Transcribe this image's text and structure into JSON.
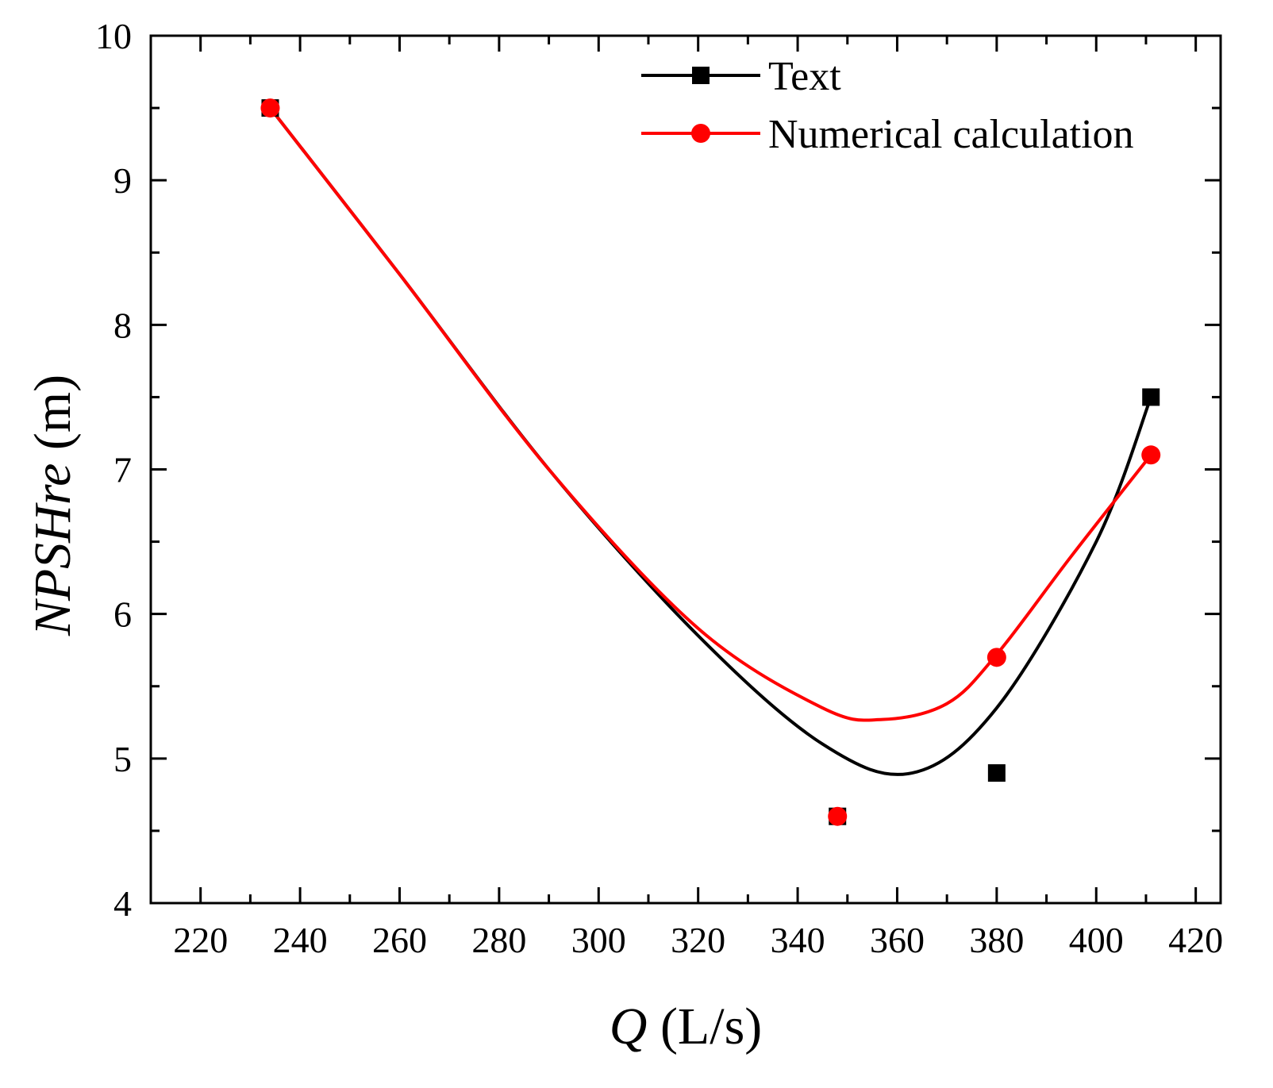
{
  "chart_data": {
    "type": "line",
    "xlabel": {
      "symbol": "Q",
      "unit": " (L/s)"
    },
    "ylabel": {
      "symbol": "NPSHre",
      "unit": " (m)"
    },
    "xlim": [
      210,
      425
    ],
    "ylim": [
      4,
      10
    ],
    "x_ticks": [
      220,
      240,
      260,
      280,
      300,
      320,
      340,
      360,
      380,
      400,
      420
    ],
    "y_ticks": [
      4,
      5,
      6,
      7,
      8,
      9,
      10
    ],
    "grid": false,
    "legend_position": "top-right",
    "series": [
      {
        "name": "Text",
        "color": "#000000",
        "marker": "square",
        "points": [
          {
            "x": 234,
            "y": 9.5
          },
          {
            "x": 348,
            "y": 4.6
          },
          {
            "x": 380,
            "y": 4.9
          },
          {
            "x": 411,
            "y": 7.5
          }
        ],
        "curve": [
          {
            "x": 234,
            "y": 9.5
          },
          {
            "x": 260,
            "y": 8.35
          },
          {
            "x": 290,
            "y": 7.0
          },
          {
            "x": 320,
            "y": 5.85
          },
          {
            "x": 345,
            "y": 5.1
          },
          {
            "x": 363,
            "y": 4.9
          },
          {
            "x": 380,
            "y": 5.35
          },
          {
            "x": 400,
            "y": 6.5
          },
          {
            "x": 411,
            "y": 7.5
          }
        ]
      },
      {
        "name": "Numerical calculation",
        "color": "#ff0000",
        "marker": "circle",
        "points": [
          {
            "x": 234,
            "y": 9.5
          },
          {
            "x": 348,
            "y": 4.6
          },
          {
            "x": 380,
            "y": 5.7
          },
          {
            "x": 411,
            "y": 7.1
          }
        ],
        "curve": [
          {
            "x": 234,
            "y": 9.5
          },
          {
            "x": 260,
            "y": 8.35
          },
          {
            "x": 290,
            "y": 7.0
          },
          {
            "x": 320,
            "y": 5.9
          },
          {
            "x": 345,
            "y": 5.35
          },
          {
            "x": 357,
            "y": 5.27
          },
          {
            "x": 370,
            "y": 5.38
          },
          {
            "x": 380,
            "y": 5.72
          },
          {
            "x": 395,
            "y": 6.4
          },
          {
            "x": 411,
            "y": 7.1
          }
        ]
      }
    ]
  }
}
